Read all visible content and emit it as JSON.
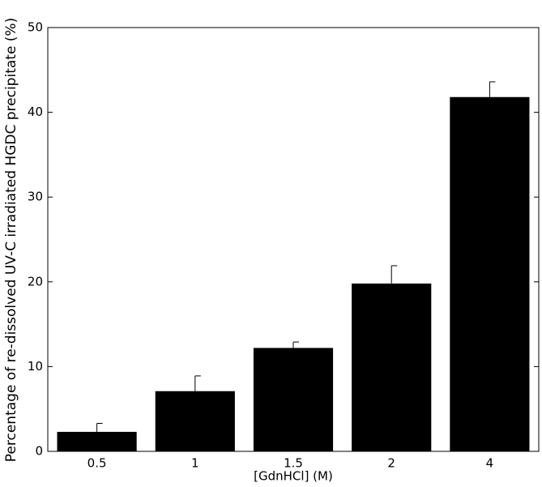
{
  "chart_data": {
    "type": "bar",
    "x_label": "[GdnHCl] (M)",
    "y_label": "Percentage of  re-dissolved UV-C irradiated HGDC precipitate (%)",
    "categories": [
      "0.5",
      "1",
      "1.5",
      "2",
      "4"
    ],
    "values": [
      2.3,
      7.1,
      12.2,
      19.8,
      41.8
    ],
    "errors": [
      1.0,
      1.8,
      0.7,
      2.1,
      1.8
    ],
    "color": "#000000",
    "ylim": [
      0,
      50
    ],
    "yticks": [
      0,
      10,
      20,
      30,
      40,
      50
    ],
    "grid": false
  }
}
